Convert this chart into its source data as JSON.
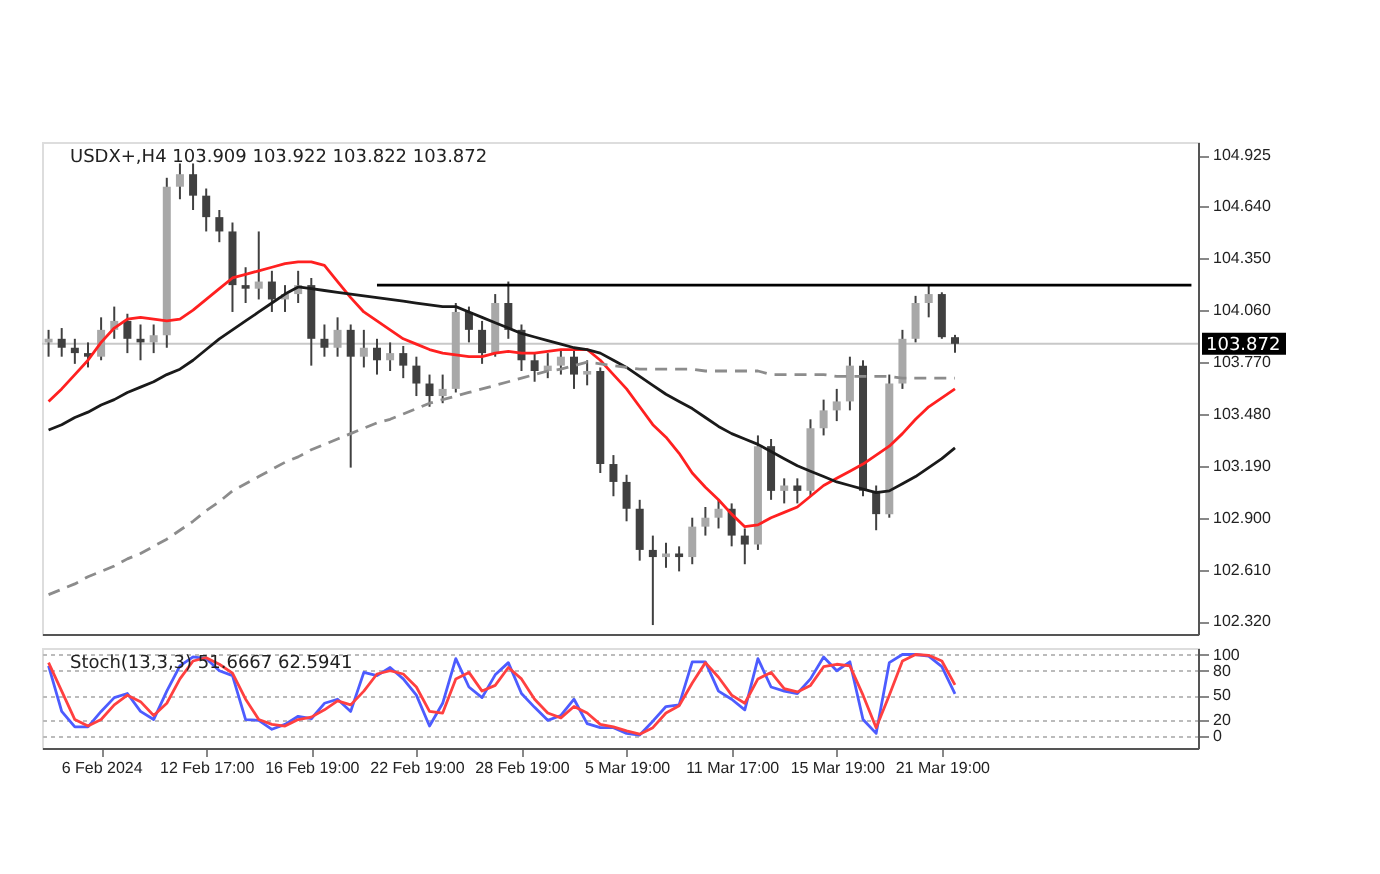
{
  "chart_data": [
    {
      "type": "candlestick",
      "title": "USDX+,H4 103.909 103.922 103.822 103.872",
      "categories": [
        null,
        null,
        null,
        null,
        null,
        null,
        null,
        null,
        null,
        null,
        null,
        null,
        null,
        null,
        null,
        null,
        null,
        null,
        null,
        null,
        null,
        null,
        null,
        null,
        null,
        null,
        null,
        null,
        null,
        null,
        null,
        null,
        null,
        null,
        null,
        null,
        null,
        null,
        null,
        null,
        null,
        null,
        null,
        null,
        null,
        null,
        null,
        null,
        null,
        null,
        null,
        null,
        null,
        null,
        null,
        null,
        null,
        null,
        null,
        null,
        null,
        null,
        null,
        null,
        null,
        null,
        null,
        null,
        null,
        null,
        null,
        null,
        null,
        null,
        null,
        null,
        null,
        null,
        null,
        null,
        null,
        null,
        null,
        null,
        null,
        null,
        null,
        null
      ],
      "ohlc": [
        [
          103.88,
          103.95,
          103.8,
          103.9
        ],
        [
          103.9,
          103.96,
          103.8,
          103.85
        ],
        [
          103.85,
          103.9,
          103.76,
          103.82
        ],
        [
          103.82,
          103.88,
          103.74,
          103.8
        ],
        [
          103.8,
          104.02,
          103.78,
          103.95
        ],
        [
          103.95,
          104.08,
          103.9,
          104.0
        ],
        [
          104.0,
          104.04,
          103.82,
          103.9
        ],
        [
          103.9,
          103.98,
          103.78,
          103.88
        ],
        [
          103.88,
          103.98,
          103.82,
          103.92
        ],
        [
          103.92,
          104.8,
          103.85,
          104.75
        ],
        [
          104.75,
          104.88,
          104.68,
          104.82
        ],
        [
          104.82,
          104.88,
          104.62,
          104.7
        ],
        [
          104.7,
          104.74,
          104.5,
          104.58
        ],
        [
          104.58,
          104.62,
          104.44,
          104.5
        ],
        [
          104.5,
          104.55,
          104.05,
          104.2
        ],
        [
          104.2,
          104.3,
          104.1,
          104.18
        ],
        [
          104.18,
          104.5,
          104.12,
          104.22
        ],
        [
          104.22,
          104.28,
          104.05,
          104.12
        ],
        [
          104.12,
          104.2,
          104.05,
          104.15
        ],
        [
          104.15,
          104.28,
          104.1,
          104.2
        ],
        [
          104.2,
          104.24,
          103.75,
          103.9
        ],
        [
          103.9,
          103.98,
          103.8,
          103.85
        ],
        [
          103.85,
          104.02,
          103.8,
          103.95
        ],
        [
          103.95,
          103.98,
          103.18,
          103.8
        ],
        [
          103.8,
          103.95,
          103.74,
          103.85
        ],
        [
          103.85,
          103.9,
          103.7,
          103.78
        ],
        [
          103.78,
          103.88,
          103.72,
          103.82
        ],
        [
          103.82,
          103.86,
          103.68,
          103.75
        ],
        [
          103.75,
          103.8,
          103.58,
          103.65
        ],
        [
          103.65,
          103.7,
          103.52,
          103.58
        ],
        [
          103.58,
          103.7,
          103.54,
          103.62
        ],
        [
          103.62,
          104.1,
          103.6,
          104.05
        ],
        [
          104.05,
          104.08,
          103.88,
          103.95
        ],
        [
          103.95,
          104.0,
          103.76,
          103.82
        ],
        [
          103.82,
          104.15,
          103.8,
          104.1
        ],
        [
          104.1,
          104.22,
          103.9,
          103.95
        ],
        [
          103.95,
          103.98,
          103.72,
          103.78
        ],
        [
          103.78,
          103.82,
          103.66,
          103.72
        ],
        [
          103.72,
          103.82,
          103.68,
          103.75
        ],
        [
          103.75,
          103.84,
          103.7,
          103.8
        ],
        [
          103.8,
          103.84,
          103.62,
          103.7
        ],
        [
          103.7,
          103.78,
          103.64,
          103.72
        ],
        [
          103.72,
          103.74,
          103.15,
          103.2
        ],
        [
          103.2,
          103.25,
          103.02,
          103.1
        ],
        [
          103.1,
          103.14,
          102.88,
          102.95
        ],
        [
          102.95,
          103.0,
          102.66,
          102.72
        ],
        [
          102.72,
          102.8,
          102.3,
          102.68
        ],
        [
          102.68,
          102.76,
          102.62,
          102.7
        ],
        [
          102.7,
          102.74,
          102.6,
          102.68
        ],
        [
          102.68,
          102.9,
          102.64,
          102.85
        ],
        [
          102.85,
          102.96,
          102.8,
          102.9
        ],
        [
          102.9,
          103.0,
          102.84,
          102.95
        ],
        [
          102.95,
          102.98,
          102.74,
          102.8
        ],
        [
          102.8,
          102.84,
          102.64,
          102.75
        ],
        [
          102.75,
          103.36,
          102.72,
          103.3
        ],
        [
          103.3,
          103.34,
          103.0,
          103.05
        ],
        [
          103.05,
          103.12,
          102.98,
          103.08
        ],
        [
          103.08,
          103.12,
          102.98,
          103.05
        ],
        [
          103.05,
          103.45,
          103.02,
          103.4
        ],
        [
          103.4,
          103.56,
          103.36,
          103.5
        ],
        [
          103.5,
          103.62,
          103.44,
          103.55
        ],
        [
          103.55,
          103.8,
          103.5,
          103.75
        ],
        [
          103.75,
          103.78,
          103.02,
          103.05
        ],
        [
          103.05,
          103.08,
          102.83,
          102.92
        ],
        [
          102.92,
          103.7,
          102.9,
          103.65
        ],
        [
          103.65,
          103.95,
          103.62,
          103.9
        ],
        [
          103.9,
          104.14,
          103.88,
          104.1
        ],
        [
          104.1,
          104.2,
          104.02,
          104.15
        ],
        [
          104.15,
          104.16,
          103.9,
          103.909
        ],
        [
          103.909,
          103.922,
          103.822,
          103.872
        ],
        null,
        null,
        null,
        null,
        null,
        null,
        null,
        null,
        null,
        null,
        null,
        null,
        null,
        null,
        null,
        null,
        null,
        null
      ],
      "series": [
        {
          "type": "line",
          "color": "#ff2020",
          "line_style": "solid",
          "values": [
            103.55,
            103.62,
            103.7,
            103.78,
            103.88,
            103.96,
            104.01,
            104.02,
            104.01,
            104.0,
            104.01,
            104.06,
            104.12,
            104.18,
            104.24,
            104.26,
            104.28,
            104.3,
            104.32,
            104.33,
            104.33,
            104.31,
            104.22,
            104.13,
            104.05,
            104.0,
            103.95,
            103.9,
            103.87,
            103.84,
            103.82,
            103.81,
            103.8,
            103.8,
            103.82,
            103.83,
            103.82,
            103.82,
            103.83,
            103.84,
            103.84,
            103.84,
            103.78,
            103.7,
            103.62,
            103.52,
            103.42,
            103.35,
            103.26,
            103.15,
            103.07,
            103.0,
            102.92,
            102.85,
            102.86,
            102.9,
            102.93,
            102.96,
            103.02,
            103.08,
            103.12,
            103.16,
            103.2,
            103.25,
            103.3,
            103.37,
            103.45,
            103.52,
            103.57,
            103.62,
            null,
            null,
            null,
            null,
            null,
            null,
            null,
            null,
            null,
            null,
            null,
            null,
            null,
            null,
            null,
            null,
            null,
            null
          ]
        },
        {
          "type": "line",
          "color": "#1a1a1a",
          "line_style": "solid",
          "values": [
            103.39,
            103.42,
            103.46,
            103.49,
            103.53,
            103.56,
            103.6,
            103.63,
            103.66,
            103.7,
            103.73,
            103.78,
            103.84,
            103.9,
            103.95,
            104.0,
            104.05,
            104.1,
            104.15,
            104.19,
            104.18,
            104.17,
            104.16,
            104.15,
            104.14,
            104.13,
            104.12,
            104.11,
            104.1,
            104.09,
            104.08,
            104.08,
            104.05,
            104.02,
            103.99,
            103.96,
            103.93,
            103.91,
            103.89,
            103.87,
            103.85,
            103.84,
            103.82,
            103.78,
            103.74,
            103.69,
            103.64,
            103.59,
            103.55,
            103.51,
            103.46,
            103.41,
            103.37,
            103.34,
            103.31,
            103.27,
            103.23,
            103.19,
            103.16,
            103.13,
            103.1,
            103.08,
            103.06,
            103.04,
            103.05,
            103.09,
            103.13,
            103.18,
            103.23,
            103.29,
            null,
            null,
            null,
            null,
            null,
            null,
            null,
            null,
            null,
            null,
            null,
            null,
            null,
            null,
            null,
            null,
            null,
            null
          ]
        },
        {
          "type": "line",
          "color": "#8c8c8c",
          "line_style": "dashed",
          "values": [
            102.47,
            102.5,
            102.53,
            102.57,
            102.6,
            102.63,
            102.67,
            102.7,
            102.74,
            102.78,
            102.83,
            102.88,
            102.94,
            102.99,
            103.05,
            103.09,
            103.13,
            103.17,
            103.21,
            103.24,
            103.28,
            103.31,
            103.34,
            103.37,
            103.4,
            103.43,
            103.45,
            103.48,
            103.51,
            103.54,
            103.56,
            103.58,
            103.6,
            103.62,
            103.64,
            103.66,
            103.68,
            103.7,
            103.72,
            103.73,
            103.75,
            103.77,
            103.76,
            103.75,
            103.74,
            103.73,
            103.73,
            103.73,
            103.73,
            103.73,
            103.72,
            103.72,
            103.72,
            103.72,
            103.72,
            103.7,
            103.7,
            103.7,
            103.7,
            103.7,
            103.69,
            103.69,
            103.69,
            103.69,
            103.69,
            103.68,
            103.68,
            103.68,
            103.68,
            103.68,
            null,
            null,
            null,
            null,
            null,
            null,
            null,
            null,
            null,
            null,
            null,
            null,
            null,
            null,
            null,
            null,
            null,
            null
          ]
        },
        {
          "type": "line",
          "color": "#000000",
          "line_style": "solid",
          "values": [
            null,
            null,
            null,
            null,
            null,
            null,
            null,
            null,
            null,
            null,
            null,
            null,
            null,
            null,
            null,
            null,
            null,
            null,
            null,
            null,
            null,
            null,
            null,
            null,
            null,
            104.2,
            104.2,
            104.2,
            104.2,
            104.2,
            104.2,
            104.2,
            104.2,
            104.2,
            104.2,
            104.2,
            104.2,
            104.2,
            104.2,
            104.2,
            104.2,
            104.2,
            104.2,
            104.2,
            104.2,
            104.2,
            104.2,
            104.2,
            104.2,
            104.2,
            104.2,
            104.2,
            104.2,
            104.2,
            104.2,
            104.2,
            104.2,
            104.2,
            104.2,
            104.2,
            104.2,
            104.2,
            104.2,
            104.2,
            104.2,
            104.2,
            104.2,
            104.2,
            104.2,
            104.2,
            104.2,
            104.2,
            104.2,
            104.2,
            104.2,
            104.2,
            104.2,
            104.2,
            104.2,
            104.2,
            104.2,
            104.2,
            104.2,
            104.2,
            104.2,
            104.2,
            104.2,
            104.2
          ]
        }
      ],
      "ylim": [
        102.25,
        105.0
      ],
      "yticks": [
        {
          "value": 102.32,
          "label": "102.320"
        },
        {
          "value": 102.61,
          "label": "102.610"
        },
        {
          "value": 102.9,
          "label": "102.900"
        },
        {
          "value": 103.19,
          "label": "103.190"
        },
        {
          "value": 103.48,
          "label": "103.480"
        },
        {
          "value": 103.77,
          "label": "103.770"
        },
        {
          "value": 104.06,
          "label": "104.060"
        },
        {
          "value": 104.35,
          "label": "104.350"
        },
        {
          "value": 104.64,
          "label": "104.640"
        },
        104.925
      ],
      "ref_lines": [
        {
          "axis": "y",
          "value": 103.872,
          "label": "103.872",
          "color": "#c8c8c8"
        }
      ],
      "tick_labels": "y"
    },
    {
      "type": "line",
      "title": "Stoch(13,3,3) 51.6667 62.5941",
      "categories": [
        null,
        null,
        null,
        null,
        "6 Feb 2024",
        null,
        null,
        null,
        null,
        null,
        null,
        null,
        "12 Feb 17:00",
        null,
        null,
        null,
        null,
        null,
        null,
        null,
        "16 Feb 19:00",
        null,
        null,
        null,
        null,
        null,
        null,
        null,
        "22 Feb 19:00",
        null,
        null,
        null,
        null,
        null,
        null,
        null,
        "28 Feb 19:00",
        null,
        null,
        null,
        null,
        null,
        null,
        null,
        "5 Mar 19:00",
        null,
        null,
        null,
        null,
        null,
        null,
        null,
        "11 Mar 17:00",
        null,
        null,
        null,
        null,
        null,
        null,
        null,
        "15 Mar 19:00",
        null,
        null,
        null,
        null,
        null,
        null,
        null,
        "21 Mar 19:00",
        null,
        null,
        null,
        null,
        null,
        null,
        null,
        null,
        null,
        null,
        null,
        null,
        null,
        null,
        null,
        null,
        null,
        null,
        null
      ],
      "series": [
        {
          "color": "#4d5cff",
          "values": [
            86,
            30,
            11,
            11,
            30,
            47,
            52,
            30,
            20,
            55,
            86,
            97,
            95,
            80,
            74,
            20,
            19,
            8,
            14,
            24,
            21,
            40,
            45,
            30,
            78,
            74,
            84,
            70,
            50,
            12,
            40,
            95,
            60,
            47,
            75,
            90,
            52,
            35,
            19,
            25,
            45,
            15,
            10,
            10,
            3,
            1,
            18,
            36,
            38,
            91,
            91,
            55,
            45,
            32,
            95,
            60,
            55,
            52,
            70,
            97,
            80,
            91,
            20,
            3,
            90,
            100,
            100,
            98,
            85,
            51.6667,
            null,
            null,
            null,
            null,
            null,
            null,
            null,
            null,
            null,
            null,
            null,
            null,
            null,
            null,
            null,
            null,
            null,
            null
          ]
        },
        {
          "color": "#ff4040",
          "values": [
            90,
            55,
            20,
            12,
            20,
            38,
            50,
            42,
            25,
            40,
            70,
            92,
            96,
            88,
            77,
            45,
            20,
            14,
            12,
            20,
            23,
            32,
            43,
            38,
            55,
            76,
            80,
            76,
            60,
            30,
            28,
            70,
            78,
            55,
            62,
            84,
            70,
            45,
            28,
            22,
            36,
            28,
            14,
            11,
            6,
            2,
            10,
            28,
            37,
            65,
            90,
            72,
            50,
            40,
            70,
            78,
            58,
            54,
            62,
            85,
            88,
            86,
            50,
            10,
            50,
            92,
            100,
            99,
            92,
            62.5941,
            null,
            null,
            null,
            null,
            null,
            null,
            null,
            null,
            null,
            null,
            null,
            null,
            null,
            null,
            null,
            null,
            null,
            null
          ]
        }
      ],
      "ylim": [
        -15,
        108
      ],
      "yticks": [
        0,
        20,
        50,
        80,
        100
      ],
      "grid": "y",
      "line_style": "solid"
    }
  ]
}
